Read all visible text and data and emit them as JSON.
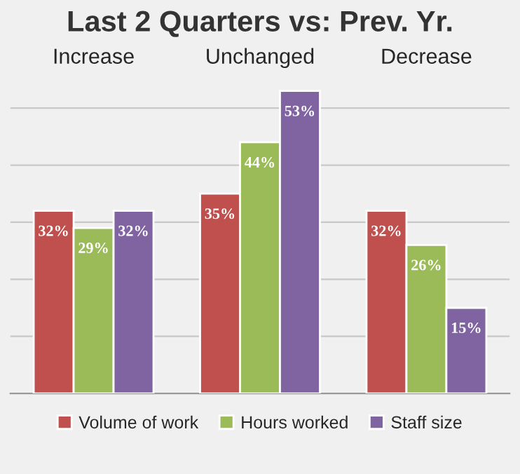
{
  "chart_data": {
    "type": "bar",
    "title": "Last 2 Quarters vs: Prev. Yr.",
    "categories": [
      "Increase",
      "Unchanged",
      "Decrease"
    ],
    "series": [
      {
        "name": "Volume of work",
        "color": "#c0504d",
        "values": [
          32,
          35,
          32
        ],
        "value_labels": [
          "32%",
          "35%",
          "32%"
        ]
      },
      {
        "name": "Hours worked",
        "color": "#9bbb59",
        "values": [
          29,
          44,
          26
        ],
        "value_labels": [
          "29%",
          "44%",
          "26%"
        ]
      },
      {
        "name": "Staff size",
        "color": "#8064a2",
        "values": [
          32,
          53,
          15
        ],
        "value_labels": [
          "32%",
          "53%",
          "15%"
        ]
      }
    ],
    "grid": "y",
    "legend": "bottom"
  }
}
